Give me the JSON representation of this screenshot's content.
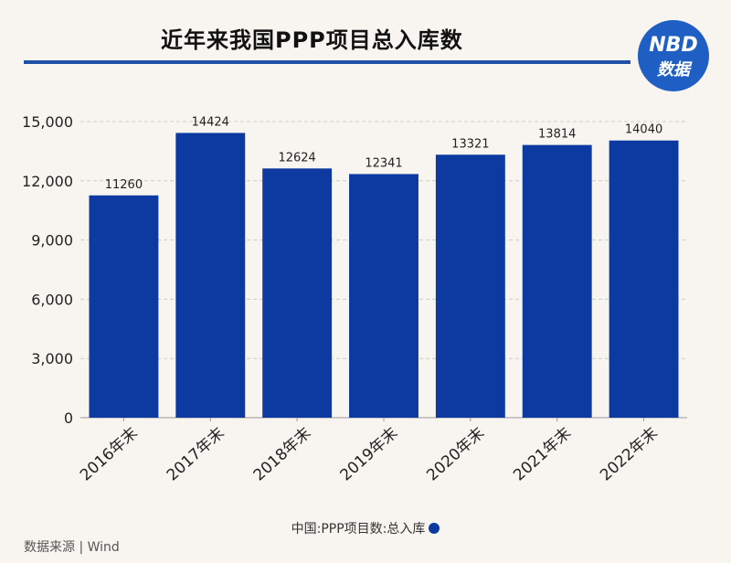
{
  "header": {
    "title": "近年来我国PPP项目总入库数"
  },
  "logo": {
    "line1": "NBD",
    "line2": "数据"
  },
  "legend": {
    "label": "中国:PPP项目数:总入库"
  },
  "footer": {
    "source": "数据来源 | Wind"
  },
  "colors": {
    "bar": "#0d3aa1",
    "accent": "#1f4fa6"
  },
  "chart_data": {
    "type": "bar",
    "categories": [
      "2016年末",
      "2017年末",
      "2018年末",
      "2019年末",
      "2020年末",
      "2021年末",
      "2022年末"
    ],
    "series": [
      {
        "name": "中国:PPP项目数:总入库",
        "values": [
          11260,
          14424,
          12624,
          12341,
          13321,
          13814,
          14040
        ]
      }
    ],
    "y_ticks": [
      "0",
      "3,000",
      "6,000",
      "9,000",
      "12,000",
      "15,000"
    ],
    "ylim": [
      0,
      15000
    ],
    "grid": "horizontal dashed",
    "legend_position": "bottom-center"
  }
}
